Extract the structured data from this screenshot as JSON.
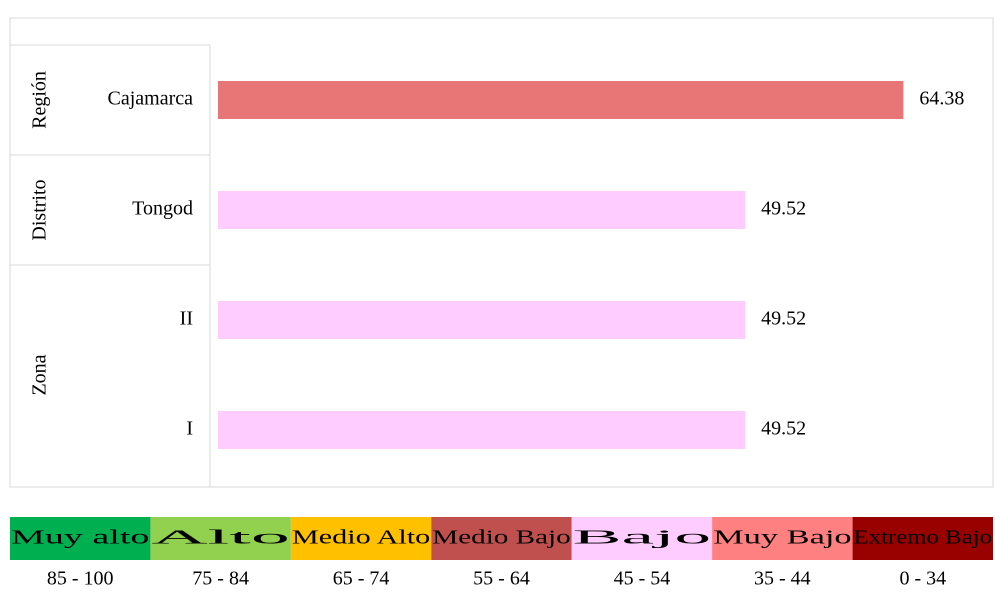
{
  "chart_data": {
    "type": "bar",
    "orientation": "horizontal",
    "groups": [
      {
        "name": "Región",
        "color": "#e87676",
        "categories": [
          "Cajamarca"
        ],
        "values": [
          64.38
        ]
      },
      {
        "name": "Distrito",
        "color": "#ffccff",
        "categories": [
          "Tongod"
        ],
        "values": [
          49.52
        ]
      },
      {
        "name": "Zona",
        "color": "#ffccff",
        "categories": [
          "II",
          "I"
        ],
        "values": [
          49.52,
          49.52
        ]
      }
    ],
    "xlim": [
      0,
      72.8
    ],
    "legend_scale": [
      {
        "label": "Muy alto",
        "range": "85 - 100",
        "color": "#00b050",
        "text_color": "#000000"
      },
      {
        "label": "Alto",
        "range": "75 - 84",
        "color": "#92d050",
        "text_color": "#000000"
      },
      {
        "label": "Medio Alto",
        "range": "65 - 74",
        "color": "#ffc000",
        "text_color": "#000000"
      },
      {
        "label": "Medio Bajo",
        "range": "55 - 64",
        "color": "#c0504d",
        "text_color": "#000000"
      },
      {
        "label": "Bajo",
        "range": "45 - 54",
        "color": "#ffccff",
        "text_color": "#000000"
      },
      {
        "label": "Muy Bajo",
        "range": "35 - 44",
        "color": "#ff8080",
        "text_color": "#000000"
      },
      {
        "label": "Extremo Bajo",
        "range": "0 - 34",
        "color": "#990000",
        "text_color": "#ff3b3b"
      }
    ]
  }
}
